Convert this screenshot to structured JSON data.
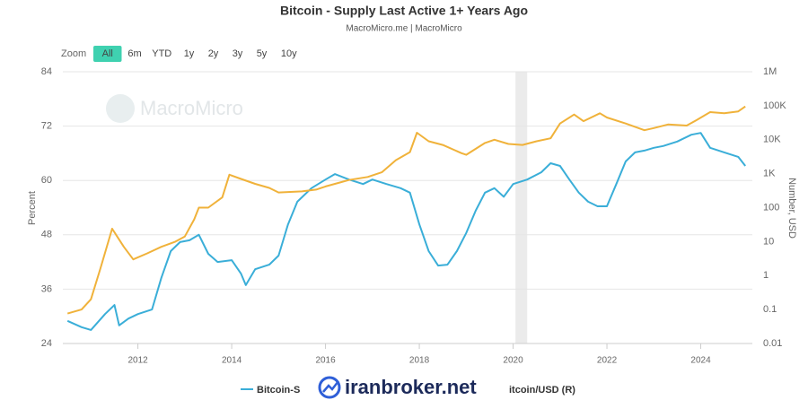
{
  "chart_data": {
    "type": "line",
    "title": "Bitcoin - Supply Last Active 1+ Years Ago",
    "subtitle": "MacroMicro.me | MacroMicro",
    "range_selector": {
      "label": "Zoom",
      "buttons": [
        "All",
        "6m",
        "YTD",
        "1y",
        "2y",
        "3y",
        "5y",
        "10y"
      ],
      "selected_index": 0
    },
    "watermarks": [
      "MacroMicro",
      "iranbroker.net"
    ],
    "y_label": "Percent",
    "y2_label": "Number, USD",
    "xlim": [
      2010.4,
      2025.1
    ],
    "xticks": [
      2012,
      2014,
      2016,
      2018,
      2020,
      2022,
      2024
    ],
    "ylim": [
      24,
      84
    ],
    "yticks": [
      24,
      36,
      48,
      60,
      72,
      84
    ],
    "y2_log": true,
    "y2lim": [
      0.01,
      1000000
    ],
    "y2ticks": [
      0.01,
      0.1,
      1,
      10,
      100,
      {
        "value": 1000,
        "label": "1K"
      },
      {
        "value": 10000,
        "label": "10K"
      },
      {
        "value": 100000,
        "label": "100K"
      },
      {
        "value": 1000000,
        "label": "1M"
      }
    ],
    "grid": true,
    "shaded_x_range": [
      2020.05,
      2020.3
    ],
    "series": [
      {
        "name": "Bitcoin-S",
        "color": "#3aaed8",
        "x": [
          2010.5,
          2010.8,
          2011.0,
          2011.3,
          2011.5,
          2011.6,
          2011.8,
          2012.0,
          2012.3,
          2012.5,
          2012.7,
          2012.9,
          2013.1,
          2013.3,
          2013.5,
          2013.7,
          2014.0,
          2014.2,
          2014.3,
          2014.5,
          2014.8,
          2015.0,
          2015.2,
          2015.4,
          2015.7,
          2016.0,
          2016.2,
          2016.5,
          2016.8,
          2017.0,
          2017.3,
          2017.6,
          2017.8,
          2018.0,
          2018.2,
          2018.4,
          2018.6,
          2018.8,
          2019.0,
          2019.2,
          2019.4,
          2019.6,
          2019.8,
          2020.0,
          2020.3,
          2020.6,
          2020.8,
          2021.0,
          2021.2,
          2021.4,
          2021.6,
          2021.8,
          2022.0,
          2022.2,
          2022.4,
          2022.6,
          2022.8,
          2023.0,
          2023.2,
          2023.5,
          2023.8,
          2024.0,
          2024.2,
          2024.5,
          2024.8,
          2024.95
        ],
        "values": [
          29,
          27.6,
          27,
          30.5,
          32.5,
          28,
          29.5,
          30.5,
          31.5,
          38.5,
          44.4,
          46.4,
          46.8,
          48,
          43.8,
          42,
          42.4,
          39.4,
          36.9,
          40.4,
          41.4,
          43.4,
          50.3,
          55.3,
          58.3,
          60.2,
          61.4,
          60.2,
          59.2,
          60.2,
          59.2,
          58.3,
          57.3,
          50.3,
          44.4,
          41.2,
          41.4,
          44.4,
          48.4,
          53.3,
          57.3,
          58.3,
          56.4,
          59.2,
          60.2,
          61.8,
          63.8,
          63.2,
          60.2,
          57.3,
          55.3,
          54.3,
          54.3,
          59.2,
          64.2,
          66.2,
          66.6,
          67.2,
          67.6,
          68.6,
          70.1,
          70.5,
          67.2,
          66.2,
          65.2,
          63.2
        ]
      },
      {
        "name": "itcoin/USD (R)",
        "color": "#f0b23a",
        "axis": "y2",
        "x": [
          2010.5,
          2010.8,
          2011.0,
          2011.2,
          2011.45,
          2011.7,
          2011.9,
          2012.2,
          2012.5,
          2012.8,
          2013.0,
          2013.2,
          2013.3,
          2013.5,
          2013.8,
          2013.95,
          2014.2,
          2014.5,
          2014.8,
          2015.0,
          2015.5,
          2015.8,
          2016.0,
          2016.5,
          2016.9,
          2017.2,
          2017.5,
          2017.8,
          2017.95,
          2018.2,
          2018.5,
          2018.9,
          2019.0,
          2019.4,
          2019.6,
          2019.9,
          2020.2,
          2020.5,
          2020.8,
          2021.0,
          2021.3,
          2021.5,
          2021.85,
          2022.0,
          2022.4,
          2022.8,
          2023.0,
          2023.3,
          2023.7,
          2023.9,
          2024.2,
          2024.5,
          2024.8,
          2024.95
        ],
        "values": [
          0.076,
          0.1,
          0.2,
          1.6,
          24,
          7,
          3,
          4.5,
          7,
          10,
          14,
          45,
          100,
          100,
          200,
          930,
          700,
          500,
          380,
          280,
          300,
          340,
          420,
          650,
          800,
          1100,
          2500,
          4300,
          16000,
          9000,
          7000,
          4000,
          3600,
          8000,
          10000,
          7500,
          7000,
          9000,
          11000,
          30000,
          55000,
          35000,
          60000,
          45000,
          30000,
          19000,
          22000,
          28000,
          26000,
          37000,
          65000,
          60000,
          68000,
          95000
        ]
      }
    ]
  }
}
